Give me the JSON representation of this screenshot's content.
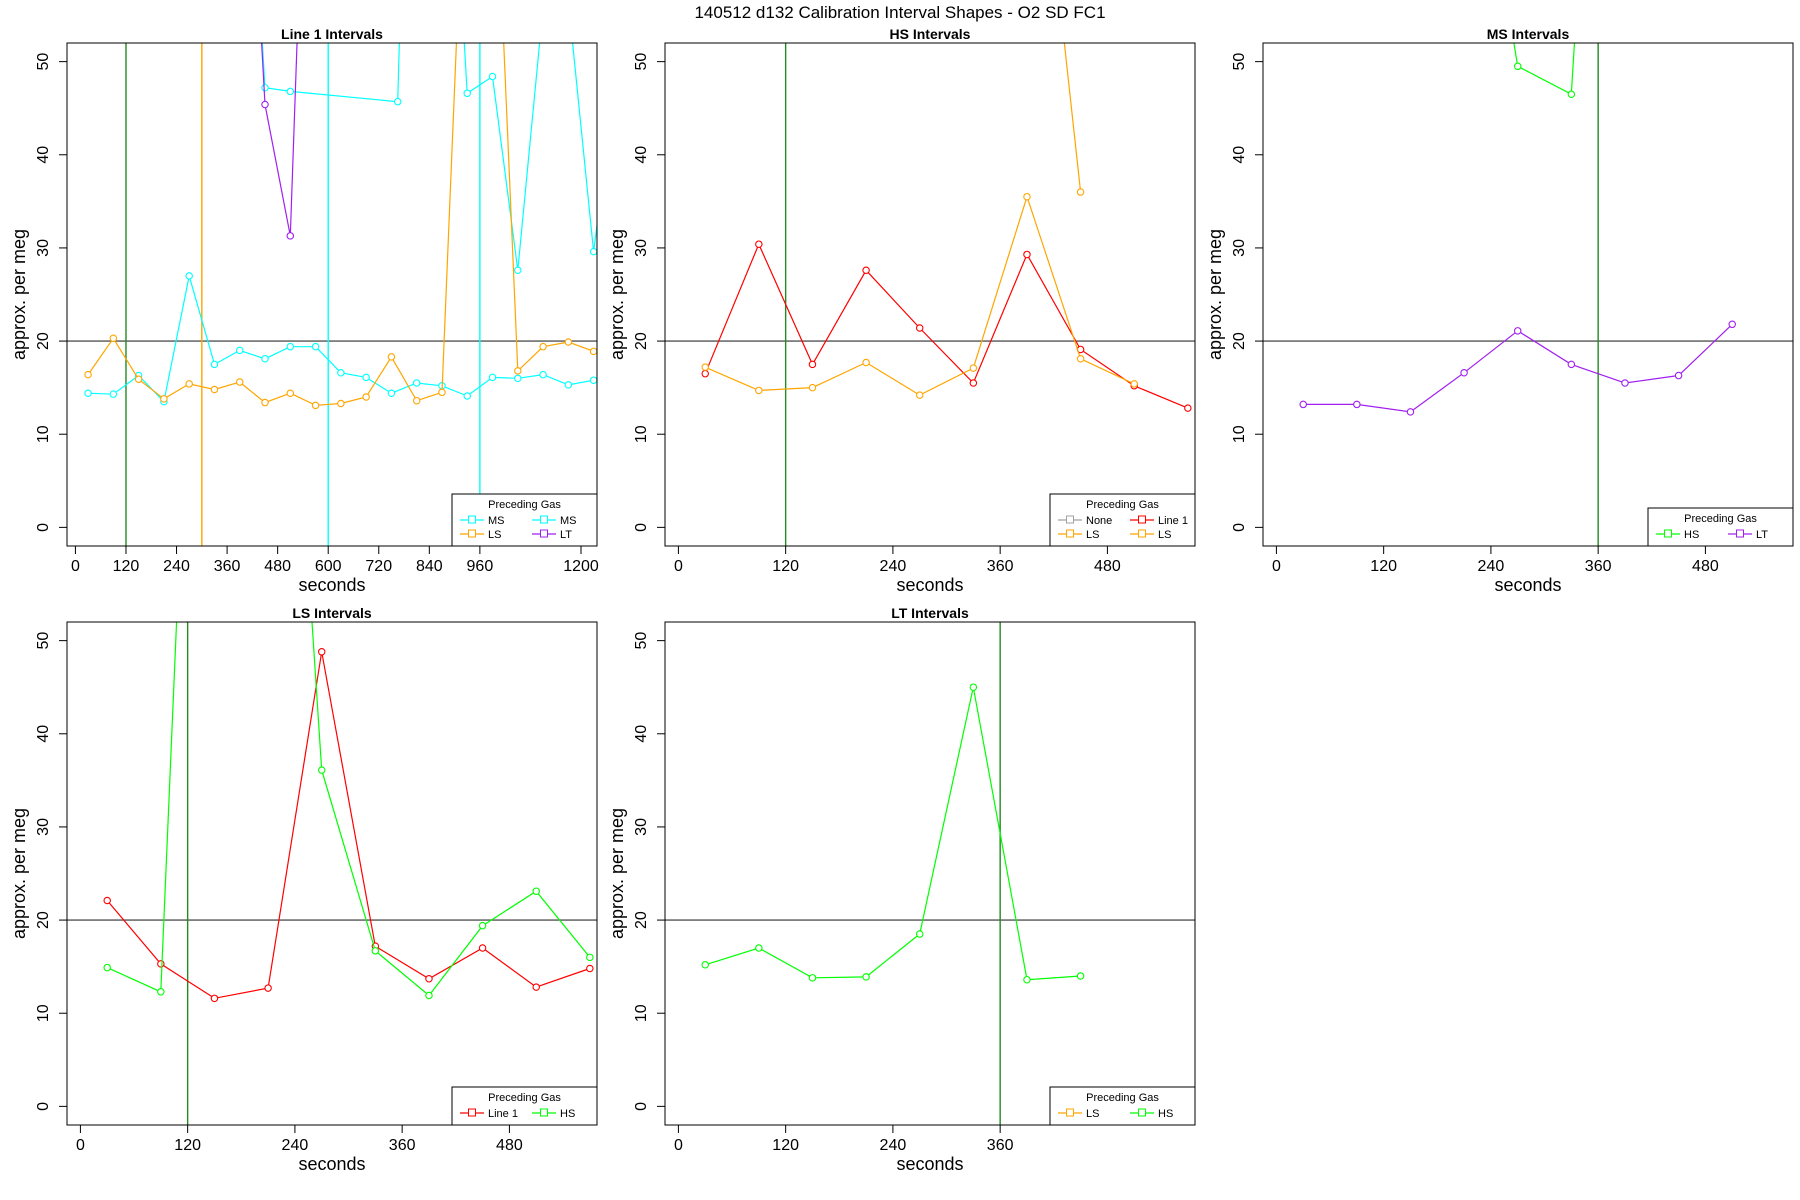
{
  "figure": {
    "title": "140512   d132   Calibration Interval Shapes - O2 SD FC1"
  },
  "chart_data": [
    {
      "type": "line",
      "title": "Line 1 Intervals",
      "xlabel": "seconds",
      "ylabel": "approx. per meg",
      "xlim": [
        -20,
        1238
      ],
      "ylim": [
        -2,
        52
      ],
      "xticks": [
        0,
        120,
        240,
        360,
        480,
        600,
        720,
        840,
        960,
        1200
      ],
      "yticks": [
        0,
        10,
        20,
        30,
        40,
        50
      ],
      "hline": 20,
      "vlines": [
        {
          "x": 120,
          "color": "#228B22"
        },
        {
          "x": 300,
          "color": "#FFA500"
        },
        {
          "x": 600,
          "color": "#00FFFF"
        },
        {
          "x": 960,
          "color": "#00FFFF"
        }
      ],
      "legend": {
        "title": "Preceding Gas",
        "placement": "bottom-right",
        "columns": 2
      },
      "series": [
        {
          "name": "MS",
          "color": "#00FFFF",
          "x": [
            30,
            90,
            150,
            210,
            270,
            330,
            390,
            450,
            510,
            570,
            630,
            690,
            750,
            810,
            870,
            930,
            990,
            1050,
            1110,
            1170,
            1230
          ],
          "y": [
            14.4,
            14.3,
            16.3,
            13.5,
            27,
            17.5,
            19,
            18.1,
            19.4,
            19.4,
            16.6,
            16.1,
            14.4,
            15.5,
            15.2,
            14.1,
            16.1,
            16,
            16.4,
            15.3,
            15.8
          ]
        },
        {
          "name": "MS",
          "color": "#00FFFF",
          "x": [
            420,
            450,
            510,
            765,
            780,
            900,
            930,
            990,
            1050,
            1140,
            1230,
            1260
          ],
          "y": [
            70,
            47.2,
            46.8,
            45.7,
            70,
            70,
            46.6,
            48.4,
            27.6,
            70,
            29.6,
            40
          ]
        },
        {
          "name": "LS",
          "color": "#FFA500",
          "x": [
            30,
            90,
            150,
            210,
            270,
            330,
            390,
            450,
            510,
            570,
            630,
            690,
            750,
            810,
            870,
            930,
            990,
            1050,
            1110,
            1170,
            1230
          ],
          "y": [
            16.4,
            20.3,
            15.9,
            13.8,
            15.4,
            14.8,
            15.6,
            13.4,
            14.4,
            13.1,
            13.3,
            14,
            18.3,
            13.6,
            14.5,
            80,
            80,
            16.8,
            19.4,
            19.9,
            18.9
          ]
        },
        {
          "name": "LT",
          "color": "#A020F0",
          "x": [
            420,
            450,
            510,
            540
          ],
          "y": [
            70,
            45.4,
            31.3,
            70
          ]
        }
      ]
    },
    {
      "type": "line",
      "title": "HS Intervals",
      "xlabel": "seconds",
      "ylabel": "approx. per meg",
      "xlim": [
        -15,
        578
      ],
      "ylim": [
        -2,
        52
      ],
      "xticks": [
        0,
        120,
        240,
        360,
        480
      ],
      "yticks": [
        0,
        10,
        20,
        30,
        40,
        50
      ],
      "hline": 20,
      "vlines": [
        {
          "x": 120,
          "color": "#228B22"
        }
      ],
      "legend": {
        "title": "Preceding Gas",
        "placement": "bottom-right",
        "columns": 2
      },
      "series": [
        {
          "name": "None",
          "color": "#A0A0A0",
          "x": [],
          "y": []
        },
        {
          "name": "Line 1",
          "color": "#FF0000",
          "x": [
            30,
            90,
            150,
            210,
            270,
            330,
            390,
            450,
            510,
            570
          ],
          "y": [
            16.5,
            30.4,
            17.5,
            27.6,
            21.4,
            15.5,
            29.3,
            19.1,
            15.2,
            12.8
          ]
        },
        {
          "name": "LS",
          "color": "#FFA500",
          "x": [
            30,
            90,
            150,
            210,
            270,
            330,
            390,
            450,
            510
          ],
          "y": [
            17.2,
            14.7,
            15,
            17.7,
            14.2,
            17.1,
            35.5,
            18.1,
            15.4
          ]
        },
        {
          "name": "LS",
          "color": "#FFA500",
          "x": [
            400,
            450
          ],
          "y": [
            80,
            36
          ]
        }
      ]
    },
    {
      "type": "line",
      "title": "MS Intervals",
      "xlabel": "seconds",
      "ylabel": "approx. per meg",
      "xlim": [
        -15,
        578
      ],
      "ylim": [
        -2,
        52
      ],
      "xticks": [
        0,
        120,
        240,
        360,
        480
      ],
      "yticks": [
        0,
        10,
        20,
        30,
        40,
        50
      ],
      "hline": 20,
      "vlines": [
        {
          "x": 360,
          "color": "#228B22"
        }
      ],
      "legend": {
        "title": "Preceding Gas",
        "placement": "bottom-right",
        "columns": 2
      },
      "series": [
        {
          "name": "HS",
          "color": "#00FF00",
          "x": [
            235,
            270,
            330,
            345
          ],
          "y": [
            70,
            49.5,
            46.5,
            70
          ]
        },
        {
          "name": "LT",
          "color": "#A020F0",
          "x": [
            30,
            90,
            150,
            210,
            270,
            330,
            390,
            450,
            510
          ],
          "y": [
            13.2,
            13.2,
            12.4,
            16.6,
            21.1,
            17.5,
            15.5,
            16.3,
            21.8
          ]
        }
      ]
    },
    {
      "type": "line",
      "title": "LS Intervals",
      "xlabel": "seconds",
      "ylabel": "approx. per meg",
      "xlim": [
        -15,
        578
      ],
      "ylim": [
        -2,
        52
      ],
      "xticks": [
        0,
        120,
        240,
        360,
        480
      ],
      "yticks": [
        0,
        10,
        20,
        30,
        40,
        50
      ],
      "hline": 20,
      "vlines": [
        {
          "x": 120,
          "color": "#228B22"
        }
      ],
      "legend": {
        "title": "Preceding Gas",
        "placement": "bottom-right",
        "columns": 2
      },
      "series": [
        {
          "name": "Line 1",
          "color": "#FF0000",
          "x": [
            30,
            90,
            150,
            210,
            270,
            330,
            390,
            450,
            510,
            570
          ],
          "y": [
            22.1,
            15.3,
            11.6,
            12.7,
            48.8,
            17.2,
            13.7,
            17,
            12.8,
            14.8
          ]
        },
        {
          "name": "HS",
          "color": "#00FF00",
          "x": [
            30,
            90,
            120,
            240,
            270,
            330,
            390,
            450,
            510,
            570
          ],
          "y": [
            14.9,
            12.3,
            80,
            80,
            36.1,
            16.7,
            11.9,
            19.4,
            23.1,
            16
          ]
        }
      ]
    },
    {
      "type": "line",
      "title": "LT Intervals",
      "xlabel": "seconds",
      "ylabel": "approx. per meg",
      "xlim": [
        -15,
        578
      ],
      "ylim": [
        -2,
        52
      ],
      "xticks": [
        0,
        120,
        240,
        360
      ],
      "yticks": [
        0,
        10,
        20,
        30,
        40,
        50
      ],
      "hline": 20,
      "vlines": [
        {
          "x": 360,
          "color": "#228B22"
        }
      ],
      "legend": {
        "title": "Preceding Gas",
        "placement": "bottom-right",
        "columns": 2
      },
      "series": [
        {
          "name": "LS",
          "color": "#FFA500",
          "x": [],
          "y": []
        },
        {
          "name": "HS",
          "color": "#00FF00",
          "x": [
            30,
            90,
            150,
            210,
            270,
            330,
            390,
            450
          ],
          "y": [
            15.2,
            17,
            13.8,
            13.9,
            18.5,
            45,
            13.6,
            14
          ]
        }
      ]
    }
  ]
}
